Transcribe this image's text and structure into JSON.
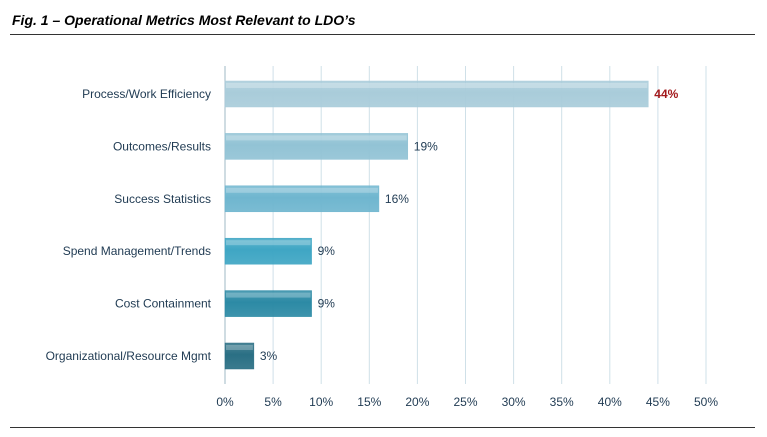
{
  "title": "Fig. 1 – Operational Metrics Most Relevant to LDO’s",
  "chart_data": {
    "type": "bar",
    "orientation": "horizontal",
    "categories": [
      "Process/Work Efficiency",
      "Outcomes/Results",
      "Success Statistics",
      "Spend Management/Trends",
      "Cost Containment",
      "Organizational/Resource Mgmt"
    ],
    "values": [
      44,
      19,
      16,
      9,
      9,
      3
    ],
    "value_labels": [
      "44%",
      "19%",
      "16%",
      "9%",
      "9%",
      "3%"
    ],
    "highlight_index": 0,
    "highlight_color": "#a3191c",
    "bar_colors": [
      "#a9ccda",
      "#92c3d5",
      "#6fb6cf",
      "#3fa6c4",
      "#2c8aa5",
      "#2a6f84"
    ],
    "xlim": [
      0,
      50
    ],
    "xticks": [
      0,
      5,
      10,
      15,
      20,
      25,
      30,
      35,
      40,
      45,
      50
    ],
    "xtick_labels": [
      "0%",
      "5%",
      "10%",
      "15%",
      "20%",
      "25%",
      "30%",
      "35%",
      "40%",
      "45%",
      "50%"
    ],
    "grid": true,
    "legend": false,
    "xlabel": "",
    "ylabel": ""
  }
}
